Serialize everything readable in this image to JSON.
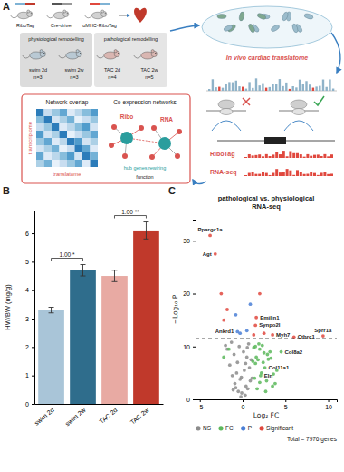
{
  "diagram": {
    "panel_label": "A",
    "mice": [
      "RiboTag",
      "Cre-driver",
      "αMHC-RiboTag"
    ],
    "groups": [
      {
        "title": "physiological remodelling",
        "conditions": [
          {
            "label": "swim 2d",
            "n": "n=3"
          },
          {
            "label": "swim 2w",
            "n": "n=3"
          }
        ]
      },
      {
        "title": "pathological remodelling",
        "conditions": [
          {
            "label": "TAC 2d",
            "n": "n=4"
          },
          {
            "label": "TAC 2w",
            "n": "n=5"
          }
        ]
      }
    ],
    "translatome_title": "In vivo cardiac translatome",
    "network": {
      "overlap_title": "Network overlap",
      "x_label": "translatome",
      "y_label": "transcriptome",
      "coexp_title": "Co-expression networks",
      "nodes": [
        "Ribo",
        "RNA"
      ],
      "hub_label": "hub genes rewiring",
      "function_label": "function"
    },
    "tracks": [
      "RiboTag",
      "RNA-seq"
    ]
  },
  "chart_data": [
    {
      "type": "bar",
      "panel_label": "B",
      "categories": [
        "swim 2d",
        "swim 2w",
        "TAC 2d",
        "TAC 2w"
      ],
      "values": [
        3.3,
        4.7,
        4.5,
        6.1
      ],
      "errors": [
        0.1,
        0.2,
        0.2,
        0.3
      ],
      "colors": [
        "#a9c5d8",
        "#2f6d8c",
        "#e8aaa3",
        "#c0392b"
      ],
      "y_label": "HW/BW (mg/g)",
      "ylim": [
        0,
        6.8
      ],
      "yticks": [
        0,
        1,
        2,
        3,
        4,
        5,
        6
      ],
      "comparisons": [
        {
          "pair": [
            0,
            1
          ],
          "label": "1.00 *"
        },
        {
          "pair": [
            2,
            3
          ],
          "label": "1.00 **"
        }
      ]
    },
    {
      "type": "scatter",
      "panel_label": "C",
      "title": "pathological vs. physiological RNA-seq",
      "x_label": "Log₂ FC",
      "y_label": "−Log₁₀ P",
      "xlim": [
        -5.5,
        11
      ],
      "xticks": [
        -5,
        0,
        5,
        10
      ],
      "ylim": [
        0,
        34
      ],
      "yticks": [
        0,
        10,
        20,
        30
      ],
      "cutoff": 11.5,
      "legend": "bottom",
      "series": [
        {
          "name": "NS",
          "color": "#8c8c8c",
          "x": [
            -0.2,
            0.3,
            -0.5,
            0.6,
            -0.9,
            0.9,
            -1.2,
            1.1,
            -0.1,
            0.4,
            -0.7,
            0.8,
            -1.5,
            -0.3,
            0.2,
            -0.6,
            0.5,
            -1.0,
            1.0,
            -1.8,
            0.1,
            -0.4,
            0.7,
            -1.3,
            -0.8,
            0.35,
            -0.15,
            0.55,
            -2.0,
            -1.1
          ],
          "y": [
            0.5,
            0.8,
            1.5,
            2.0,
            3.0,
            3.5,
            4.5,
            4.0,
            1.2,
            2.5,
            5.0,
            6.0,
            6.5,
            3.8,
            5.5,
            7.0,
            8.0,
            8.5,
            7.5,
            9.5,
            9.0,
            10.0,
            10.5,
            10.8,
            2.2,
            6.8,
            4.2,
            9.8,
            10.2,
            1.8
          ]
        },
        {
          "name": "FC",
          "color": "#5cb85c",
          "x": [
            1.5,
            2.0,
            2.5,
            1.8,
            3.0,
            2.2,
            1.4,
            2.8,
            3.5,
            1.6,
            2.4,
            3.2,
            4.0,
            1.9,
            2.6,
            1.3,
            3.8,
            2.1,
            1.7,
            2.9,
            3.3,
            1.5,
            2.3,
            4.5,
            -1.6,
            -2.2,
            2.7,
            1.2,
            3.6,
            2.0
          ],
          "y": [
            10.0,
            9.5,
            8.8,
            7.5,
            7.6,
            5.0,
            4.0,
            3.5,
            2.5,
            8.0,
            7.0,
            9.0,
            5.5,
            10.5,
            6.0,
            9.8,
            3.0,
            4.5,
            2.0,
            8.5,
            7.8,
            6.8,
            10.2,
            9.0,
            9.5,
            8.0,
            1.5,
            7.2,
            4.8,
            3.2
          ]
        },
        {
          "name": "P",
          "color": "#4a7fd6",
          "x": [
            -0.8,
            0.5,
            -0.3,
            0.9,
            -0.6
          ],
          "y": [
            16,
            13,
            12.5,
            18,
            12.8
          ]
        },
        {
          "name": "Significant",
          "color": "#e0483e",
          "x": [
            -3.8,
            -3.2,
            -2.5,
            -1.8,
            -2.2,
            1.6,
            1.5,
            3.5,
            6.0,
            9.4,
            2.0,
            1.3,
            2.5
          ],
          "y": [
            31,
            27.5,
            20,
            17,
            15,
            15.5,
            14,
            12.2,
            11.8,
            12.0,
            20,
            12.2,
            12.5
          ]
        }
      ],
      "annotations": [
        {
          "text": "Ppargc1a",
          "x": -3.8,
          "y": 31
        },
        {
          "text": "Agt",
          "x": -3.2,
          "y": 27.5
        },
        {
          "text": "Emilin1",
          "x": 1.6,
          "y": 15.5
        },
        {
          "text": "Synpo2l",
          "x": 1.5,
          "y": 14
        },
        {
          "text": "Ankrd1",
          "x": -0.6,
          "y": 12.8
        },
        {
          "text": "Myh7",
          "x": 3.5,
          "y": 12.2
        },
        {
          "text": "Cthrc1",
          "x": 6.0,
          "y": 11.8
        },
        {
          "text": "Sprr1a",
          "x": 9.4,
          "y": 12.0
        },
        {
          "text": "Col8a2",
          "x": 4.5,
          "y": 9.0
        },
        {
          "text": "Col11a1",
          "x": 2.6,
          "y": 6.0
        },
        {
          "text": "Eln",
          "x": 2.1,
          "y": 4.5
        }
      ],
      "footnote": "Total = 7976 genes"
    }
  ]
}
